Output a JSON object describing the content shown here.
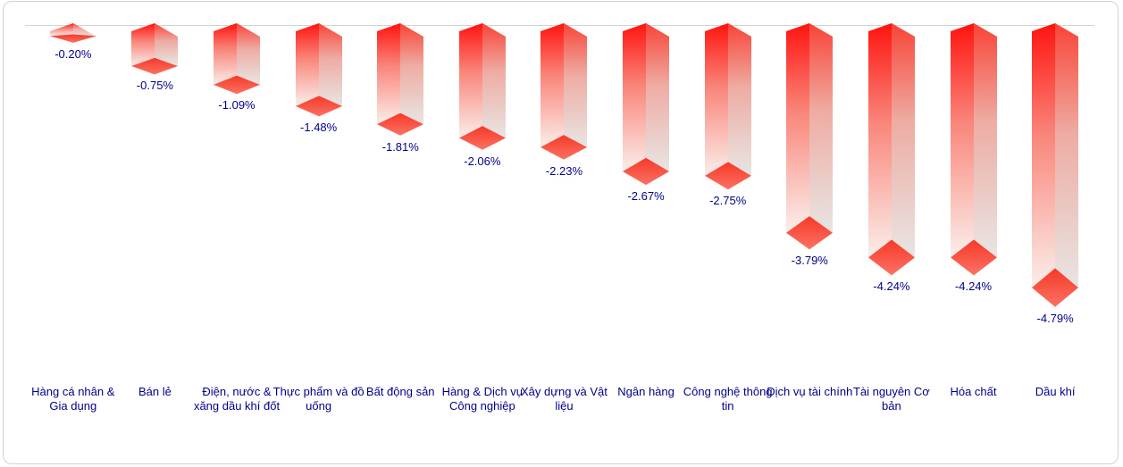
{
  "chart_data": {
    "type": "bar",
    "style": "pseudo-3d-negative-columns",
    "title": "",
    "xlabel": "",
    "ylabel": "",
    "ylim": [
      -5,
      0
    ],
    "baseline": 0,
    "grid": false,
    "legend": false,
    "categories": [
      "Hàng cá nhân & Gia dụng",
      "Bán lẻ",
      "Điện, nước & xăng dầu khí đốt",
      "Thực phẩm và đồ uống",
      "Bất động sản",
      "Hàng & Dịch vụ Công nghiệp",
      "Xây dựng và Vật liệu",
      "Ngân hàng",
      "Công nghệ thông tin",
      "Dịch vụ tài chính",
      "Tài nguyên Cơ bản",
      "Hóa chất",
      "Dầu khí"
    ],
    "values": [
      -0.2,
      -0.75,
      -1.09,
      -1.48,
      -1.81,
      -2.06,
      -2.23,
      -2.67,
      -2.75,
      -3.79,
      -4.24,
      -4.24,
      -4.79
    ],
    "value_labels": [
      "-0.20%",
      "-0.75%",
      "-1.09%",
      "-1.48%",
      "-1.81%",
      "-2.06%",
      "-2.23%",
      "-2.67%",
      "-2.75%",
      "-3.79%",
      "-4.24%",
      "-4.24%",
      "-4.79%"
    ],
    "colors": {
      "front_face_top": "#ff130f",
      "front_face_mid": "#f9857a",
      "front_face_bottom": "#fbeeea",
      "side_face_top": "#f94437",
      "side_face_mid": "#eeaca3",
      "side_face_bottom": "#e8e5e3",
      "bottom_face_top": "#f63928",
      "bottom_face_bottom": "#fb7264",
      "label_text": "#00008b",
      "axis_line": "#d4d4d4",
      "card_border": "#d2d2d2",
      "background": "#ffffff"
    }
  }
}
